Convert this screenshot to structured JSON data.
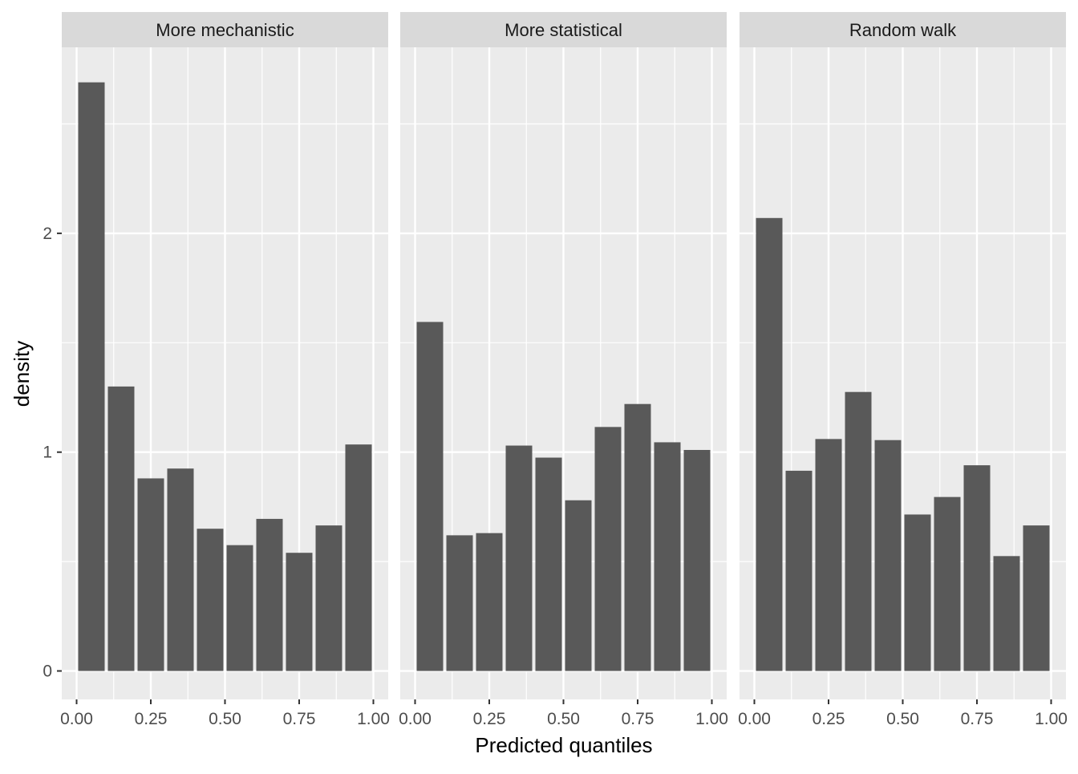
{
  "chart_data": {
    "type": "bar",
    "xlabel": "Predicted quantiles",
    "ylabel": "density",
    "xlim": [
      -0.05,
      1.05
    ],
    "ylim": [
      -0.13,
      2.85
    ],
    "x_ticks": [
      "0.00",
      "0.25",
      "0.50",
      "0.75",
      "1.00"
    ],
    "y_ticks": [
      "0",
      "1",
      "2"
    ],
    "bins": [
      0.0,
      0.1,
      0.2,
      0.3,
      0.4,
      0.5,
      0.6,
      0.7,
      0.8,
      0.9,
      1.0
    ],
    "panels": [
      {
        "title": "More mechanistic",
        "values": [
          2.69,
          1.3,
          0.88,
          0.925,
          0.65,
          0.575,
          0.695,
          0.54,
          0.665,
          1.035
        ]
      },
      {
        "title": "More statistical",
        "values": [
          1.595,
          0.62,
          0.63,
          1.03,
          0.975,
          0.78,
          1.115,
          1.22,
          1.045,
          1.01
        ]
      },
      {
        "title": "Random walk",
        "values": [
          2.07,
          0.915,
          1.06,
          1.275,
          1.055,
          0.715,
          0.795,
          0.94,
          0.525,
          0.665
        ]
      }
    ],
    "bar_color": "#595959",
    "panel_bg": "#ebebeb",
    "strip_bg": "#d9d9d9",
    "grid": true,
    "legend": "none"
  }
}
